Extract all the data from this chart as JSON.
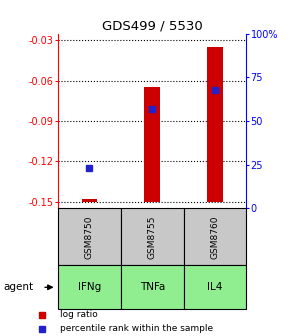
{
  "title": "GDS499 / 5530",
  "samples": [
    "GSM8750",
    "GSM8755",
    "GSM8760"
  ],
  "agents": [
    "IFNg",
    "TNFa",
    "IL4"
  ],
  "log_ratios": [
    -0.148,
    -0.065,
    -0.035
  ],
  "log_ratio_base": -0.15,
  "percentile_ranks": [
    23,
    57,
    68
  ],
  "ylim_left": [
    -0.155,
    -0.025
  ],
  "ylim_right": [
    0,
    100
  ],
  "yticks_left": [
    -0.15,
    -0.12,
    -0.09,
    -0.06,
    -0.03
  ],
  "yticks_right": [
    0,
    25,
    50,
    75,
    100
  ],
  "ytick_labels_left": [
    "-0.15",
    "-0.12",
    "-0.09",
    "-0.06",
    "-0.03"
  ],
  "ytick_labels_right": [
    "0",
    "25",
    "50",
    "75",
    "100%"
  ],
  "bar_color": "#cc0000",
  "dot_color": "#2222cc",
  "gsm_box_color": "#c8c8c8",
  "agent_box_color": "#90ee90",
  "bar_width": 0.25,
  "legend_items": [
    {
      "label": "log ratio",
      "color": "#cc0000"
    },
    {
      "label": "percentile rank within the sample",
      "color": "#2222cc"
    }
  ]
}
